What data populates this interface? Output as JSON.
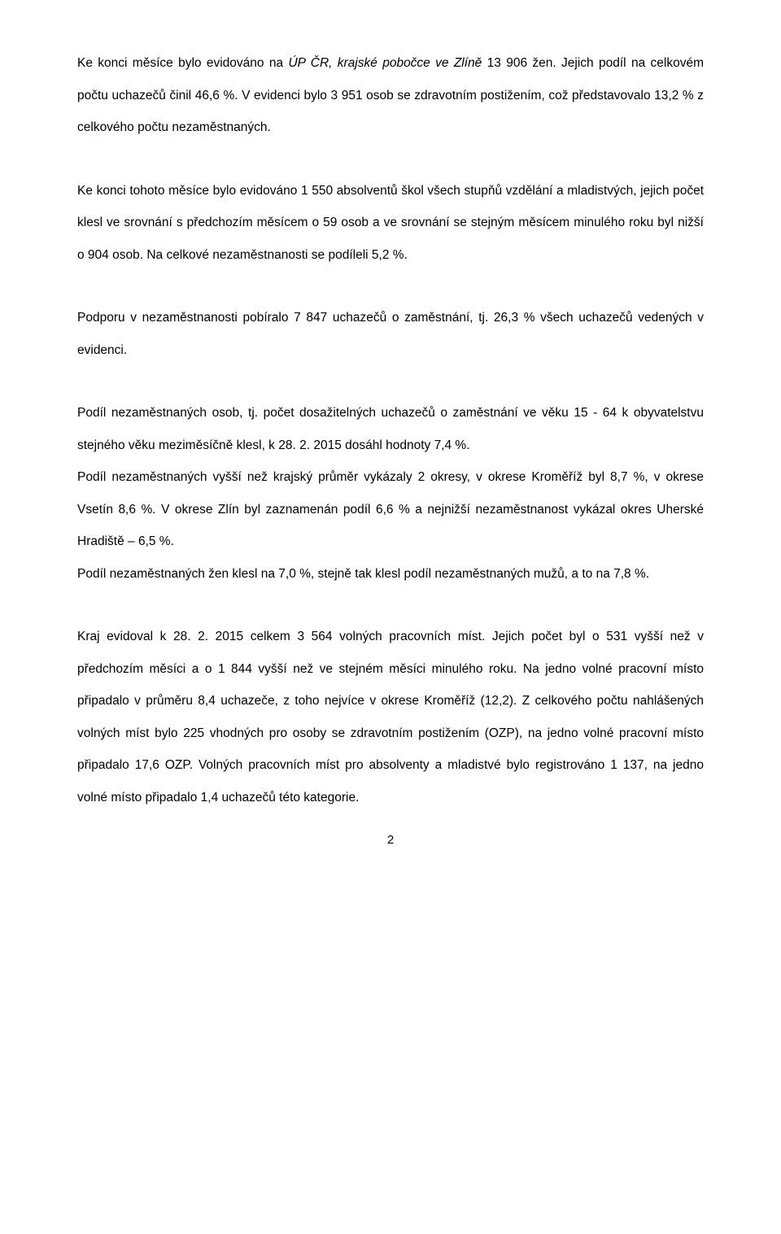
{
  "paragraphs": {
    "p1_a": "Ke konci měsíce bylo evidováno na ",
    "p1_b": "ÚP ČR, krajské pobočce ve Zlíně",
    "p1_c": " 13 906 žen. Jejich podíl na celkovém počtu uchazečů činil 46,6 %. V evidenci bylo 3 951 osob se zdravotním postižením, což představovalo 13,2 % z celkového počtu nezaměstnaných.",
    "p2": "Ke konci tohoto měsíce bylo evidováno 1 550 absolventů škol všech stupňů vzdělání a mladistvých, jejich počet klesl ve srovnání s předchozím měsícem o 59 osob a ve srovnání se stejným měsícem minulého roku byl nižší o 904 osob. Na celkové nezaměstnanosti se podíleli 5,2 %.",
    "p3": "Podporu v nezaměstnanosti pobíralo 7 847 uchazečů o zaměstnání, tj. 26,3 % všech uchazečů vedených v evidenci.",
    "p4": "Podíl nezaměstnaných osob, tj. počet dosažitelných uchazečů o zaměstnání ve věku 15 - 64 k obyvatelstvu stejného věku meziměsíčně klesl, k 28. 2. 2015 dosáhl hodnoty 7,4 %.",
    "p5": "Podíl nezaměstnaných vyšší než krajský průměr vykázaly 2 okresy, v okrese Kroměříž byl 8,7 %, v okrese Vsetín 8,6 %. V okrese Zlín byl zaznamenán podíl 6,6 % a nejnižší nezaměstnanost vykázal okres Uherské Hradiště – 6,5 %.",
    "p6": "Podíl nezaměstnaných žen klesl na 7,0 %, stejně tak klesl podíl nezaměstnaných mužů, a to na 7,8 %.",
    "p7": "Kraj evidoval k 28. 2. 2015 celkem 3 564 volných pracovních míst. Jejich počet byl o 531 vyšší než v předchozím měsíci a o 1 844 vyšší než ve stejném měsíci minulého roku. Na jedno volné pracovní místo připadalo v průměru 8,4 uchazeče, z toho nejvíce v okrese Kroměříž (12,2). Z celkového počtu nahlášených volných míst bylo 225 vhodných pro osoby se zdravotním postižením (OZP), na jedno volné pracovní místo připadalo 17,6 OZP. Volných pracovních míst pro absolventy a mladistvé bylo registrováno 1 137, na jedno volné místo připadalo 1,4 uchazečů této kategorie."
  },
  "page_number": "2"
}
